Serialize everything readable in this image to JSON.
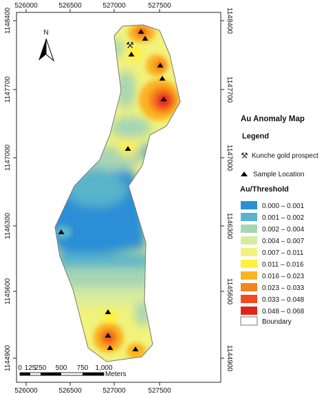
{
  "map": {
    "title": "Au Anomaly Map",
    "legend_heading": "Legend",
    "north_label": "N",
    "prospect_label": "Kunche gold prospect",
    "sample_label": "Sample Location",
    "threshold_heading": "Au/Threshold",
    "boundary_label": "Boundary",
    "x_ticks": [
      "526000",
      "526500",
      "527000",
      "527500"
    ],
    "y_ticks": [
      "1148400",
      "1147700",
      "1147000",
      "1146300",
      "1145600",
      "1144900"
    ],
    "scale_labels": [
      "0",
      "125",
      "250",
      "500",
      "750",
      "1,000"
    ],
    "scale_unit": "Meters",
    "classes": [
      {
        "label": "0.000  – 0.001",
        "color": "#2b8fd6"
      },
      {
        "label": "0.001 – 0.002",
        "color": "#58b4c9"
      },
      {
        "label": "0.002 – 0.004",
        "color": "#a6d5b3"
      },
      {
        "label": "0.004 – 0.007",
        "color": "#d8ec9e"
      },
      {
        "label": "0.007 – 0.011",
        "color": "#f2f27c"
      },
      {
        "label": "0.011 – 0.016",
        "color": "#fff13c"
      },
      {
        "label": "0.016 – 0.023",
        "color": "#fbb323"
      },
      {
        "label": "0.023 – 0.033",
        "color": "#f5841c"
      },
      {
        "label": "0.033 – 0.048",
        "color": "#ef4a22"
      },
      {
        "label": "0.048 – 0.068",
        "color": "#e2231a"
      }
    ]
  }
}
